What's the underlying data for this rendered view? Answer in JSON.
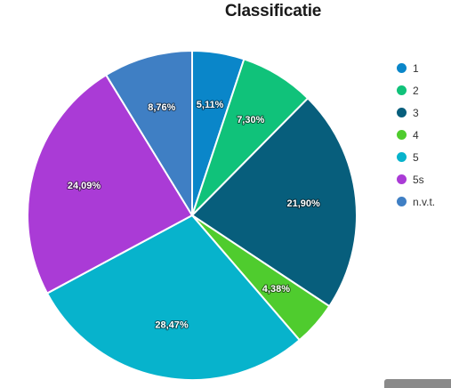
{
  "chart_data": {
    "type": "pie",
    "title": "Classificatie",
    "start_angle_deg": 0,
    "direction": "clockwise",
    "slices": [
      {
        "label": "1",
        "value": 5.11,
        "value_label": "5,11%",
        "color": "#0a86c9"
      },
      {
        "label": "2",
        "value": 7.3,
        "value_label": "7,30%",
        "color": "#10c27a"
      },
      {
        "label": "3",
        "value": 21.9,
        "value_label": "21,90%",
        "color": "#075e7c"
      },
      {
        "label": "4",
        "value": 4.38,
        "value_label": "4,38%",
        "color": "#4fcc2e"
      },
      {
        "label": "5",
        "value": 28.47,
        "value_label": "28,47%",
        "color": "#07b3cc"
      },
      {
        "label": "5s",
        "value": 24.09,
        "value_label": "24,09%",
        "color": "#aa3bd6"
      },
      {
        "label": "n.v.t.",
        "value": 8.76,
        "value_label": "8,76%",
        "color": "#3f7fc4"
      }
    ],
    "legend_position": "right"
  }
}
